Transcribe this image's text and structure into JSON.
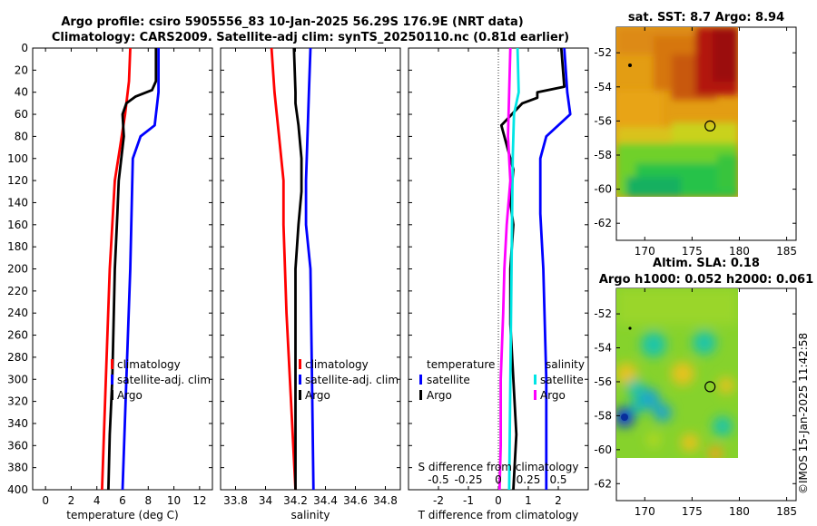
{
  "title_line1": "Argo profile: csiro 5905556_83 10-Jan-2025 56.29S 176.9E (NRT data)",
  "title_line2": "Climatology: CARS2009. Satellite-adj clim: synTS_20250110.nc (0.81d earlier)",
  "watermark": "©IMOS 15-Jan-2025 11:42:58",
  "colors": {
    "climatology": "#ff0000",
    "satellite": "#0000ff",
    "argo": "#000000",
    "sat_diff_salinity": "#00e5e5",
    "clim_diff_salinity": "#ff00ff"
  },
  "chart_data": [
    {
      "type": "line",
      "id": "temperature",
      "xlabel": "temperature (deg C)",
      "ylabel": "",
      "xlim": [
        -1,
        13
      ],
      "ylim": [
        0,
        400
      ],
      "y_inverted": true,
      "xticks": [
        0,
        2,
        4,
        6,
        8,
        10,
        12
      ],
      "yticks": [
        0,
        20,
        40,
        60,
        80,
        100,
        120,
        140,
        160,
        180,
        200,
        220,
        240,
        260,
        280,
        300,
        320,
        340,
        360,
        380,
        400
      ],
      "legend": [
        "climatology",
        "satellite-adj. clim",
        "Argo"
      ],
      "series": [
        {
          "name": "climatology",
          "color": "#ff0000",
          "depth": [
            0,
            30,
            60,
            90,
            120,
            200,
            300,
            400
          ],
          "values": [
            6.6,
            6.5,
            6.2,
            5.8,
            5.4,
            5.0,
            4.7,
            4.4
          ]
        },
        {
          "name": "satellite-adj. clim",
          "color": "#0000ff",
          "depth": [
            0,
            40,
            60,
            70,
            80,
            100,
            150,
            200,
            300,
            400
          ],
          "values": [
            8.8,
            8.8,
            8.6,
            8.5,
            7.4,
            6.8,
            6.7,
            6.6,
            6.3,
            6.0
          ]
        },
        {
          "name": "Argo",
          "color": "#000000",
          "depth": [
            0,
            30,
            38,
            44,
            50,
            60,
            80,
            100,
            120,
            150,
            200,
            250,
            300,
            350,
            400
          ],
          "values": [
            8.6,
            8.6,
            8.3,
            7.0,
            6.3,
            6.0,
            6.1,
            5.9,
            5.7,
            5.6,
            5.4,
            5.3,
            5.2,
            5.0,
            4.9
          ]
        }
      ]
    },
    {
      "type": "line",
      "id": "salinity",
      "xlabel": "salinity",
      "ylabel": "",
      "xlim": [
        33.7,
        34.9
      ],
      "ylim": [
        0,
        400
      ],
      "y_inverted": true,
      "xticks": [
        33.8,
        34,
        34.2,
        34.4,
        34.6,
        34.8
      ],
      "legend": [
        "climatology",
        "satellite-adj. clim",
        "Argo"
      ],
      "series": [
        {
          "name": "climatology",
          "color": "#ff0000",
          "depth": [
            0,
            40,
            80,
            120,
            160,
            240,
            320,
            400
          ],
          "values": [
            34.04,
            34.06,
            34.09,
            34.12,
            34.12,
            34.14,
            34.17,
            34.2
          ]
        },
        {
          "name": "satellite-adj. clim",
          "color": "#0000ff",
          "depth": [
            0,
            40,
            80,
            120,
            160,
            200,
            300,
            400
          ],
          "values": [
            34.3,
            34.29,
            34.28,
            34.27,
            34.27,
            34.3,
            34.31,
            34.32
          ]
        },
        {
          "name": "Argo",
          "color": "#000000",
          "depth": [
            0,
            40,
            50,
            70,
            100,
            130,
            160,
            200,
            300,
            400
          ],
          "values": [
            34.19,
            34.2,
            34.2,
            34.22,
            34.24,
            34.24,
            34.22,
            34.2,
            34.2,
            34.2
          ]
        }
      ]
    },
    {
      "type": "line",
      "id": "difference",
      "xlabel": "T difference from climatology",
      "ylabel": "",
      "xlim": [
        -3,
        3
      ],
      "ylim": [
        0,
        400
      ],
      "y_inverted": true,
      "xticks": [
        -2,
        -1,
        0,
        1,
        2
      ],
      "secondary_xlabel": "S difference from climatology",
      "secondary_xticks": [
        "-0.5",
        "-0.25",
        "0",
        "0.25",
        "0.5"
      ],
      "legend_temperature_title": "temperature",
      "legend_salinity_title": "salinity",
      "legend_temperature": [
        "satellite",
        "Argo"
      ],
      "legend_salinity": [
        "satellite",
        "Argo"
      ],
      "series": [
        {
          "name": "temperature satellite",
          "color": "#0000ff",
          "depth": [
            0,
            40,
            60,
            80,
            100,
            150,
            200,
            300,
            400
          ],
          "values": [
            2.2,
            2.3,
            2.4,
            1.6,
            1.4,
            1.4,
            1.5,
            1.6,
            1.6
          ]
        },
        {
          "name": "temperature Argo",
          "color": "#000000",
          "depth": [
            0,
            35,
            40,
            45,
            50,
            70,
            90,
            110,
            140,
            160,
            200,
            250,
            300,
            350,
            400
          ],
          "values": [
            2.1,
            2.2,
            1.3,
            1.3,
            0.8,
            0.1,
            0.3,
            0.5,
            0.4,
            0.5,
            0.4,
            0.4,
            0.5,
            0.6,
            0.5
          ]
        },
        {
          "name": "salinity satellite",
          "color": "#00e5e5",
          "depth": [
            0,
            40,
            60,
            100,
            200,
            300,
            400
          ],
          "values": [
            0.16,
            0.17,
            0.13,
            0.12,
            0.11,
            0.1,
            0.09
          ]
        },
        {
          "name": "salinity Argo",
          "color": "#ff00ff",
          "depth": [
            0,
            40,
            80,
            120,
            160,
            200,
            240,
            300,
            360,
            400
          ],
          "values": [
            0.1,
            0.09,
            0.08,
            0.1,
            0.07,
            0.05,
            0.04,
            0.02,
            0.02,
            0.01
          ]
        }
      ]
    },
    {
      "type": "heatmap",
      "id": "sst_map",
      "title": "sat. SST: 8.7 Argo: 8.94",
      "xlim": [
        167,
        186
      ],
      "ylim": [
        -63,
        -50.5
      ],
      "xticks": [
        170,
        175,
        180,
        185
      ],
      "yticks": [
        -52,
        -54,
        -56,
        -58,
        -60,
        -62
      ],
      "argo_position": [
        176.9,
        -56.29
      ]
    },
    {
      "type": "heatmap",
      "id": "sla_map",
      "title_line1": "Altim. SLA: 0.18",
      "title_line2": "Argo h1000: 0.052 h2000: 0.061",
      "xlim": [
        167,
        186
      ],
      "ylim": [
        -63,
        -50.5
      ],
      "xticks": [
        170,
        175,
        180,
        185
      ],
      "yticks": [
        -52,
        -54,
        -56,
        -58,
        -60,
        -62
      ],
      "argo_position": [
        176.9,
        -56.29
      ]
    }
  ]
}
